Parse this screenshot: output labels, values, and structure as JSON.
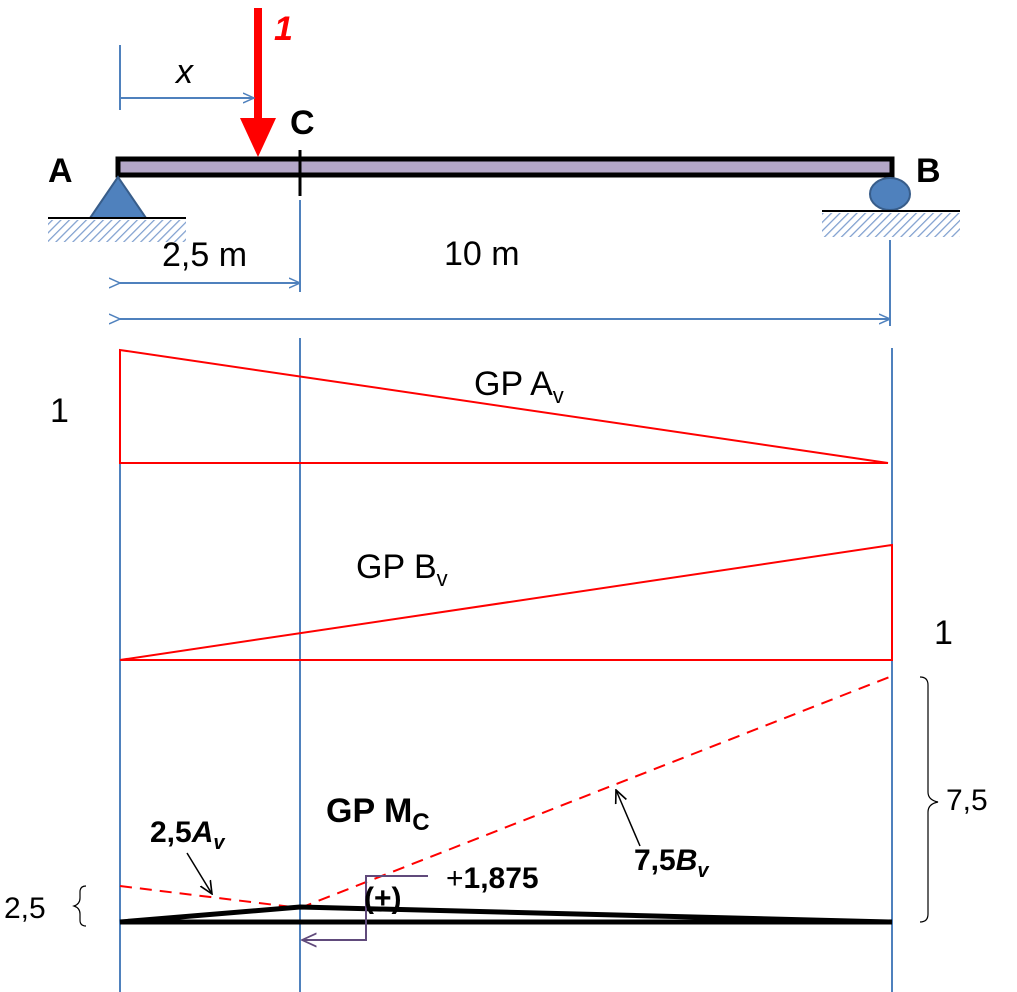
{
  "beam": {
    "load_label": "1",
    "x_label": "x",
    "point_c": "C",
    "point_a": "A",
    "point_b": "B",
    "dim_ac": "2,5 m",
    "dim_ab": "10 m"
  },
  "diagrams": {
    "gp_av": {
      "label": "GP A",
      "sub": "v",
      "value": "1"
    },
    "gp_bv": {
      "label": "GP B",
      "sub": "v",
      "value": "1"
    },
    "gp_mc": {
      "label": "GP M",
      "sub": "C",
      "left_dashed_label": "2,5",
      "left_dashed_sym": "A",
      "left_dashed_sub": "v",
      "right_dashed_label": "7,5",
      "right_dashed_sym": "B",
      "right_dashed_sub": "v",
      "peak_prefix": "+",
      "peak_value": "1,875",
      "sign": "(+)",
      "left_ordinate": "2,5",
      "right_ordinate": "7,5"
    }
  },
  "colors": {
    "red": "#ff0000",
    "blue": "#4f81bd",
    "beam_fill": "#b4a7c8",
    "support_fill": "#4f81bd",
    "black": "#000000"
  }
}
